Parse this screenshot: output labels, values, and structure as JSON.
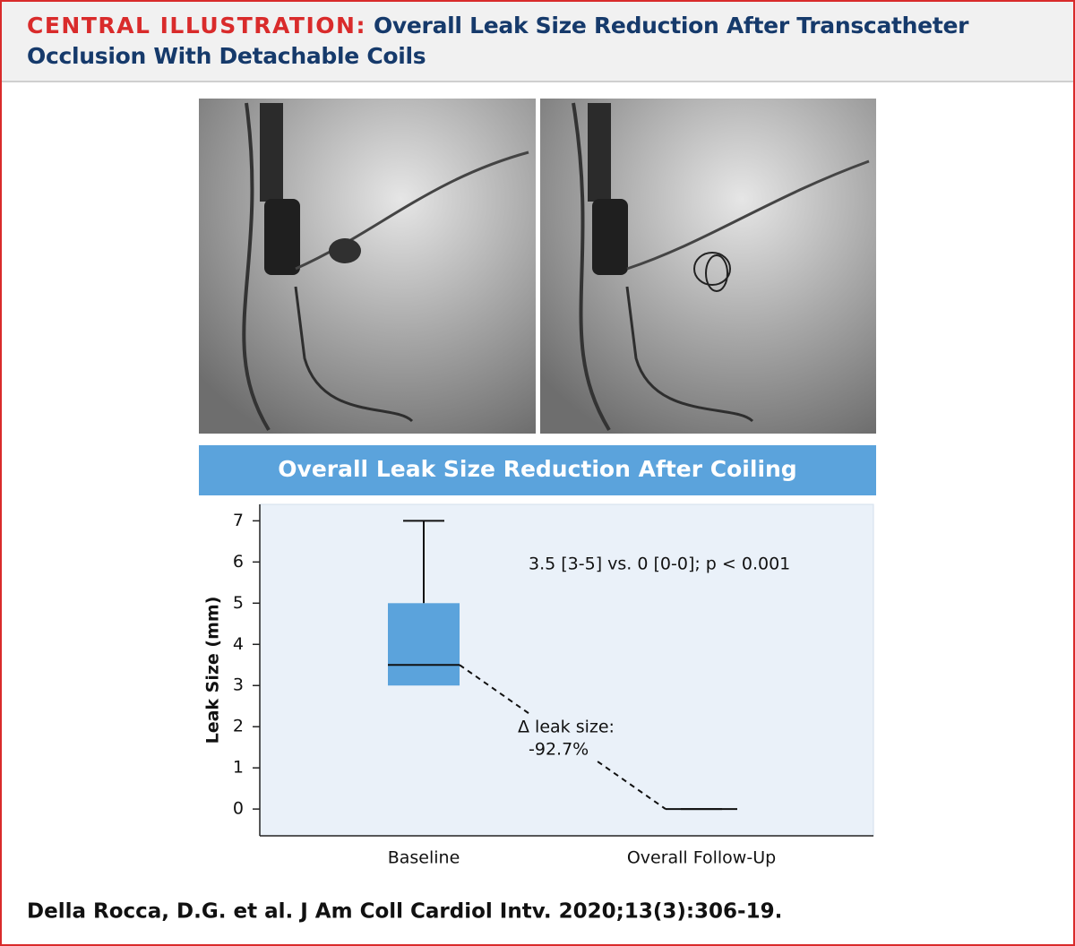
{
  "header": {
    "label": "CENTRAL ILLUSTRATION:",
    "title": "Overall Leak Size Reduction After Transcatheter Occlusion With Detachable Coils"
  },
  "chart_data": {
    "type": "box",
    "title": "Overall Leak Size Reduction After Coiling",
    "ylabel": "Leak Size (mm)",
    "categories": [
      "Baseline",
      "Overall Follow-Up"
    ],
    "boxes": [
      {
        "min": 3,
        "q1": 3,
        "median": 3.5,
        "q3": 5,
        "max": 7
      },
      {
        "min": 0,
        "q1": 0,
        "median": 0,
        "q3": 0,
        "max": 0
      }
    ],
    "color": "#5ba3dc",
    "ylim": [
      -0.65,
      7.4
    ],
    "yticks": [
      0,
      1,
      2,
      3,
      4,
      5,
      6,
      7
    ],
    "annotations": [
      "3.5 [3-5] vs. 0 [0-0]; p < 0.001",
      "Δ leak size:",
      "-92.7%"
    ]
  },
  "footer": "Della Rocca, D.G. et al. J Am Coll Cardiol Intv. 2020;13(3):306-19."
}
